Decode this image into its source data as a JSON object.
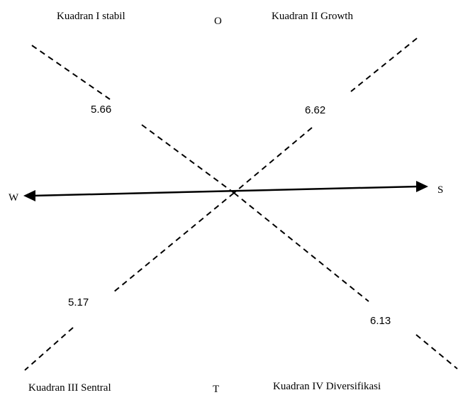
{
  "quadrants": {
    "q1": "Kuadran I stabil",
    "q2": "Kuadran II Growth",
    "q3": "Kuadran III Sentral",
    "q4": "Kuadran IV Diversifikasi"
  },
  "axes": {
    "top": "O",
    "bottom": "T",
    "left": "W",
    "right": "S"
  },
  "values": {
    "upper_left": "5.66",
    "upper_right": "6.62",
    "lower_left": "5.17",
    "lower_right": "6.13"
  }
}
